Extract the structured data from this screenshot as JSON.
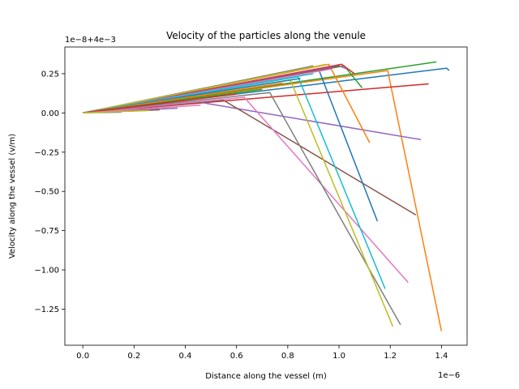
{
  "chart_data": {
    "type": "line",
    "title": "Velocity of the particles along the venule",
    "xlabel": "Distance along the vessel (m)",
    "ylabel": "Velocity along the vessel (v/m)",
    "x_offset_label": "1e−6",
    "y_offset_label": "1e−8+4e−3",
    "xlim": [
      -0.07,
      1.5
    ],
    "ylim": [
      -1.48,
      0.42
    ],
    "x_ticks": [
      0.0,
      0.2,
      0.4,
      0.6,
      0.8,
      1.0,
      1.2,
      1.4
    ],
    "x_tick_labels": [
      "0.0",
      "0.2",
      "0.4",
      "0.6",
      "0.8",
      "1.0",
      "1.2",
      "1.4"
    ],
    "y_ticks": [
      0.25,
      0.0,
      -0.25,
      -0.5,
      -0.75,
      -1.0,
      -1.25
    ],
    "y_tick_labels": [
      "0.25",
      "0.00",
      "−0.25",
      "−0.50",
      "−0.75",
      "−1.00",
      "−1.25"
    ],
    "grid": false,
    "series": [
      {
        "color": "#1f77b4",
        "x": [
          0.0,
          1.42,
          1.43
        ],
        "y": [
          0.0,
          0.285,
          0.27
        ]
      },
      {
        "color": "#ff7f0e",
        "x": [
          0.0,
          1.19,
          1.4
        ],
        "y": [
          0.0,
          0.27,
          -1.39
        ]
      },
      {
        "color": "#2ca02c",
        "x": [
          0.0,
          1.38
        ],
        "y": [
          0.0,
          0.325
        ]
      },
      {
        "color": "#d62728",
        "x": [
          0.0,
          1.35
        ],
        "y": [
          0.0,
          0.185
        ]
      },
      {
        "color": "#9467bd",
        "x": [
          0.0,
          0.45,
          1.32
        ],
        "y": [
          0.0,
          0.07,
          -0.17
        ]
      },
      {
        "color": "#8c564b",
        "x": [
          0.0,
          0.55,
          1.3
        ],
        "y": [
          0.0,
          0.08,
          -0.65
        ]
      },
      {
        "color": "#e377c2",
        "x": [
          0.0,
          0.63,
          1.27
        ],
        "y": [
          0.0,
          0.1,
          -1.08
        ]
      },
      {
        "color": "#7f7f7f",
        "x": [
          0.0,
          0.73,
          1.24
        ],
        "y": [
          0.0,
          0.13,
          -1.35
        ]
      },
      {
        "color": "#bcbd22",
        "x": [
          0.0,
          0.81,
          1.21
        ],
        "y": [
          0.0,
          0.21,
          -1.36
        ]
      },
      {
        "color": "#17becf",
        "x": [
          0.0,
          0.84,
          1.18
        ],
        "y": [
          0.0,
          0.23,
          -1.12
        ]
      },
      {
        "color": "#1f77b4",
        "x": [
          0.0,
          0.92,
          1.15
        ],
        "y": [
          0.0,
          0.28,
          -0.69
        ]
      },
      {
        "color": "#ff7f0e",
        "x": [
          0.0,
          0.96,
          1.12
        ],
        "y": [
          0.0,
          0.31,
          -0.19
        ]
      },
      {
        "color": "#2ca02c",
        "x": [
          0.0,
          1.02,
          1.09
        ],
        "y": [
          0.0,
          0.3,
          0.16
        ]
      },
      {
        "color": "#d62728",
        "x": [
          0.0,
          1.01,
          1.06
        ],
        "y": [
          0.0,
          0.31,
          0.25
        ]
      },
      {
        "color": "#9467bd",
        "x": [
          0.0,
          1.0,
          1.03
        ],
        "y": [
          0.0,
          0.3,
          0.28
        ]
      },
      {
        "color": "#8c564b",
        "x": [
          0.0,
          0.98,
          1.0
        ],
        "y": [
          0.0,
          0.29,
          0.3
        ]
      },
      {
        "color": "#e377c2",
        "x": [
          0.0,
          0.97
        ],
        "y": [
          0.0,
          0.28
        ]
      },
      {
        "color": "#7f7f7f",
        "x": [
          0.0,
          0.9
        ],
        "y": [
          0.0,
          0.3
        ]
      },
      {
        "color": "#bcbd22",
        "x": [
          0.0,
          0.95
        ],
        "y": [
          0.0,
          0.31
        ]
      },
      {
        "color": "#17becf",
        "x": [
          0.0,
          0.9
        ],
        "y": [
          0.0,
          0.25
        ]
      },
      {
        "color": "#1f77b4",
        "x": [
          0.0,
          0.85
        ],
        "y": [
          0.0,
          0.22
        ]
      },
      {
        "color": "#ff7f0e",
        "x": [
          0.0,
          0.78
        ],
        "y": [
          0.0,
          0.19
        ]
      },
      {
        "color": "#2ca02c",
        "x": [
          0.0,
          0.7
        ],
        "y": [
          0.0,
          0.15
        ]
      },
      {
        "color": "#d62728",
        "x": [
          0.0,
          0.6
        ],
        "y": [
          0.0,
          0.12
        ]
      },
      {
        "color": "#9467bd",
        "x": [
          0.0,
          0.37
        ],
        "y": [
          0.0,
          0.03
        ]
      },
      {
        "color": "#8c564b",
        "x": [
          0.0,
          0.3
        ],
        "y": [
          0.0,
          0.02
        ]
      },
      {
        "color": "#e377c2",
        "x": [
          0.0,
          0.46
        ],
        "y": [
          0.0,
          0.05
        ]
      },
      {
        "color": "#7f7f7f",
        "x": [
          0.0,
          0.15
        ],
        "y": [
          0.0,
          0.005
        ]
      },
      {
        "color": "#bcbd22",
        "x": [
          0.0,
          0.26
        ],
        "y": [
          0.0,
          0.015
        ]
      }
    ]
  }
}
